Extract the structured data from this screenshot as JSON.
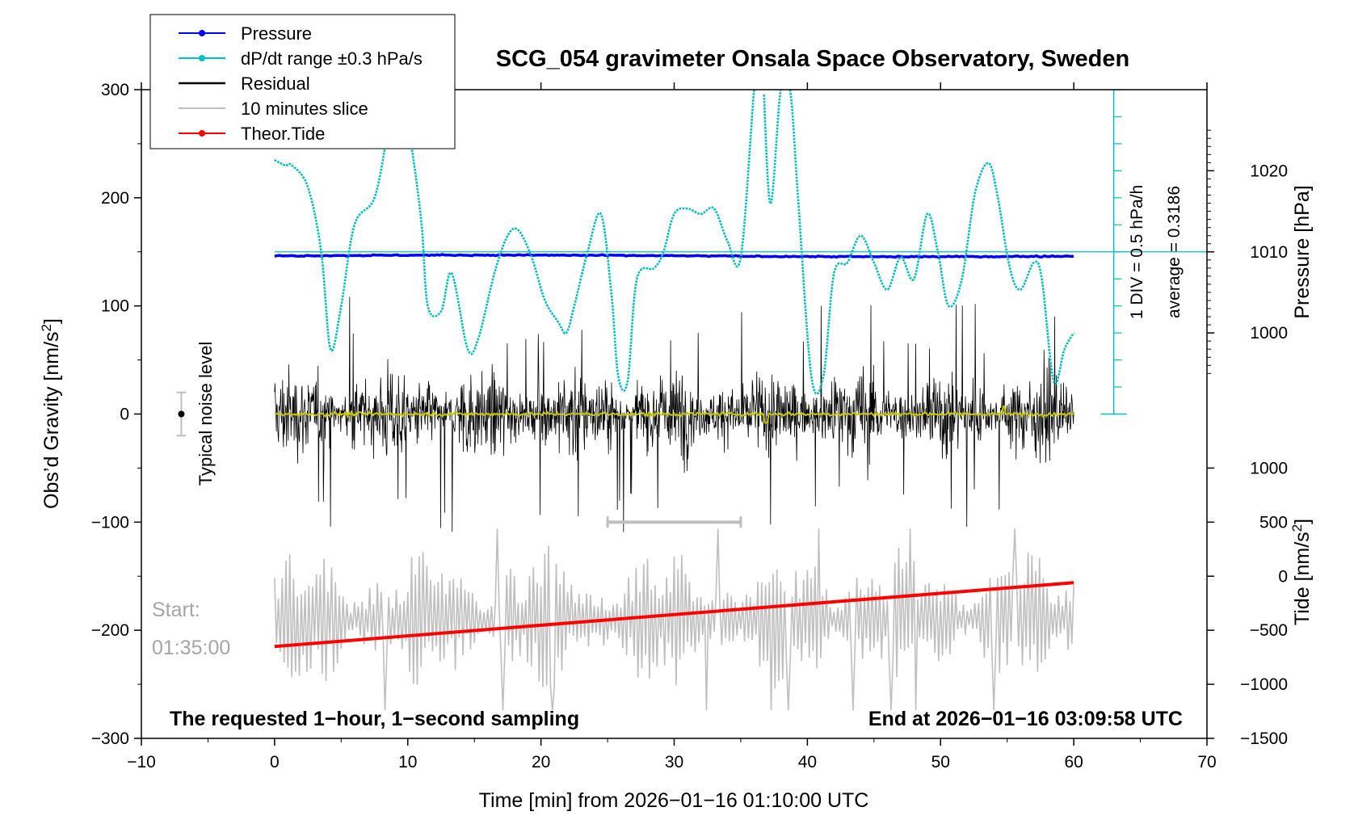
{
  "chart_data": {
    "type": "line",
    "title": "SCG_054 gravimeter Onsala Space Observatory, Sweden",
    "xlabel": "Time [min] from 2026−01−16 01:10:00 UTC",
    "xlim": [
      -10,
      70
    ],
    "xticks": [
      -10,
      0,
      10,
      20,
      30,
      40,
      50,
      60,
      70
    ],
    "xtick_labels": [
      "−10",
      "0",
      "10",
      "20",
      "30",
      "40",
      "50",
      "60",
      "70"
    ],
    "left_axis": {
      "label_main": "Obs’d Gravity [nm/s",
      "label_sup": "2",
      "label_end": "]",
      "ylim": [
        -300,
        300
      ],
      "ticks": [
        300,
        200,
        100,
        0,
        -100,
        -200,
        -300
      ],
      "tick_labels": [
        "300",
        "200",
        "100",
        "0",
        "−100",
        "−200",
        "−300"
      ]
    },
    "right_pressure_axis": {
      "label": "Pressure [hPa]",
      "ticks": [
        1020,
        1010,
        1000
      ],
      "tick_labels": [
        "1020",
        "1010",
        "1000"
      ]
    },
    "right_tide_axis": {
      "label_main": "Tide [nm/s",
      "label_sup": "2",
      "label_end": "]",
      "ticks": [
        1000,
        500,
        0,
        -500,
        -1000,
        -1500
      ],
      "tick_labels": [
        "1000",
        "500",
        "0",
        "−500",
        "−1000",
        "−1500"
      ]
    },
    "legend": {
      "position": "top-left",
      "entries": [
        {
          "label": "Pressure",
          "color": "#0000ff",
          "marker": true
        },
        {
          "label": "dP/dt range ±0.3 hPa/s",
          "color": "#00bfbf",
          "marker": true
        },
        {
          "label": "Residual",
          "color": "#000000",
          "marker": false
        },
        {
          "label": "10 minutes slice",
          "color": "#bfbfbf",
          "marker": false
        },
        {
          "label": "Theor.Tide",
          "color": "#ff0000",
          "marker": true
        }
      ]
    },
    "pressure_series": {
      "name": "Pressure",
      "level_hPa": 1010,
      "shown_value_hPa": 1009.5,
      "x_range": [
        0,
        60
      ]
    },
    "dpdt_series": {
      "name": "dP/dt range ±0.3 hPa/s",
      "x": [
        0,
        0.8,
        1.3,
        2.5,
        3.5,
        4.2,
        5,
        6,
        7.5,
        8.5,
        9.3,
        10,
        11,
        11.5,
        12.5,
        13.3,
        14.5,
        15.3,
        16.5,
        17.5,
        18.3,
        19.3,
        20.3,
        21.3,
        21.9,
        22.5,
        23.5,
        24.5,
        25.3,
        25.8,
        26.5,
        27.2,
        28.5,
        29.2,
        30,
        31,
        32,
        33,
        34,
        35,
        36,
        36.5,
        37.2,
        38,
        38.7,
        39.3,
        40.3,
        41.2,
        42,
        43,
        44,
        45,
        46,
        47,
        48,
        49,
        49.8,
        50.6,
        51.6,
        52.6,
        53.6,
        54.3,
        55.2,
        56,
        57,
        57.6,
        58.5,
        59.3,
        60
      ],
      "y": [
        235,
        230,
        230,
        210,
        150,
        60,
        100,
        175,
        200,
        260,
        300,
        270,
        180,
        100,
        95,
        130,
        60,
        70,
        130,
        165,
        170,
        145,
        105,
        85,
        75,
        100,
        150,
        185,
        110,
        35,
        30,
        125,
        135,
        150,
        185,
        190,
        185,
        190,
        160,
        145,
        300,
        350,
        195,
        300,
        300,
        200,
        35,
        35,
        130,
        140,
        165,
        140,
        115,
        145,
        125,
        185,
        150,
        100,
        125,
        205,
        232,
        200,
        135,
        115,
        140,
        125,
        30,
        60,
        75
      ]
    },
    "residual_series": {
      "name": "Residual",
      "center": 0,
      "typical_amplitude": 55,
      "max_amplitude": 110,
      "x_range": [
        0,
        60
      ]
    },
    "slice_series": {
      "name": "10 minutes slice",
      "center": -190,
      "typical_amplitude": 35,
      "x_range": [
        0,
        60
      ],
      "slice_bar_x": [
        25,
        35
      ],
      "slice_bar_y": -100
    },
    "tide_series": {
      "name": "Theor.Tide",
      "x": [
        0,
        60
      ],
      "y_left_units": [
        -215,
        -156
      ]
    },
    "noise_level": {
      "label": "Typical noise level",
      "x": -7,
      "y": 0,
      "error": 20
    },
    "scale_bar": {
      "label_div": "1 DIV = 0.5 hPa/h",
      "label_avg": "average = 0.3186",
      "x": 63,
      "bottom": 0,
      "top": 300
    },
    "annotations": {
      "start_label": "Start:",
      "start_time": "01:35:00",
      "bottom_left": "The requested 1−hour, 1−second sampling",
      "bottom_right": "End at 2026−01−16 03:09:58 UTC"
    }
  }
}
